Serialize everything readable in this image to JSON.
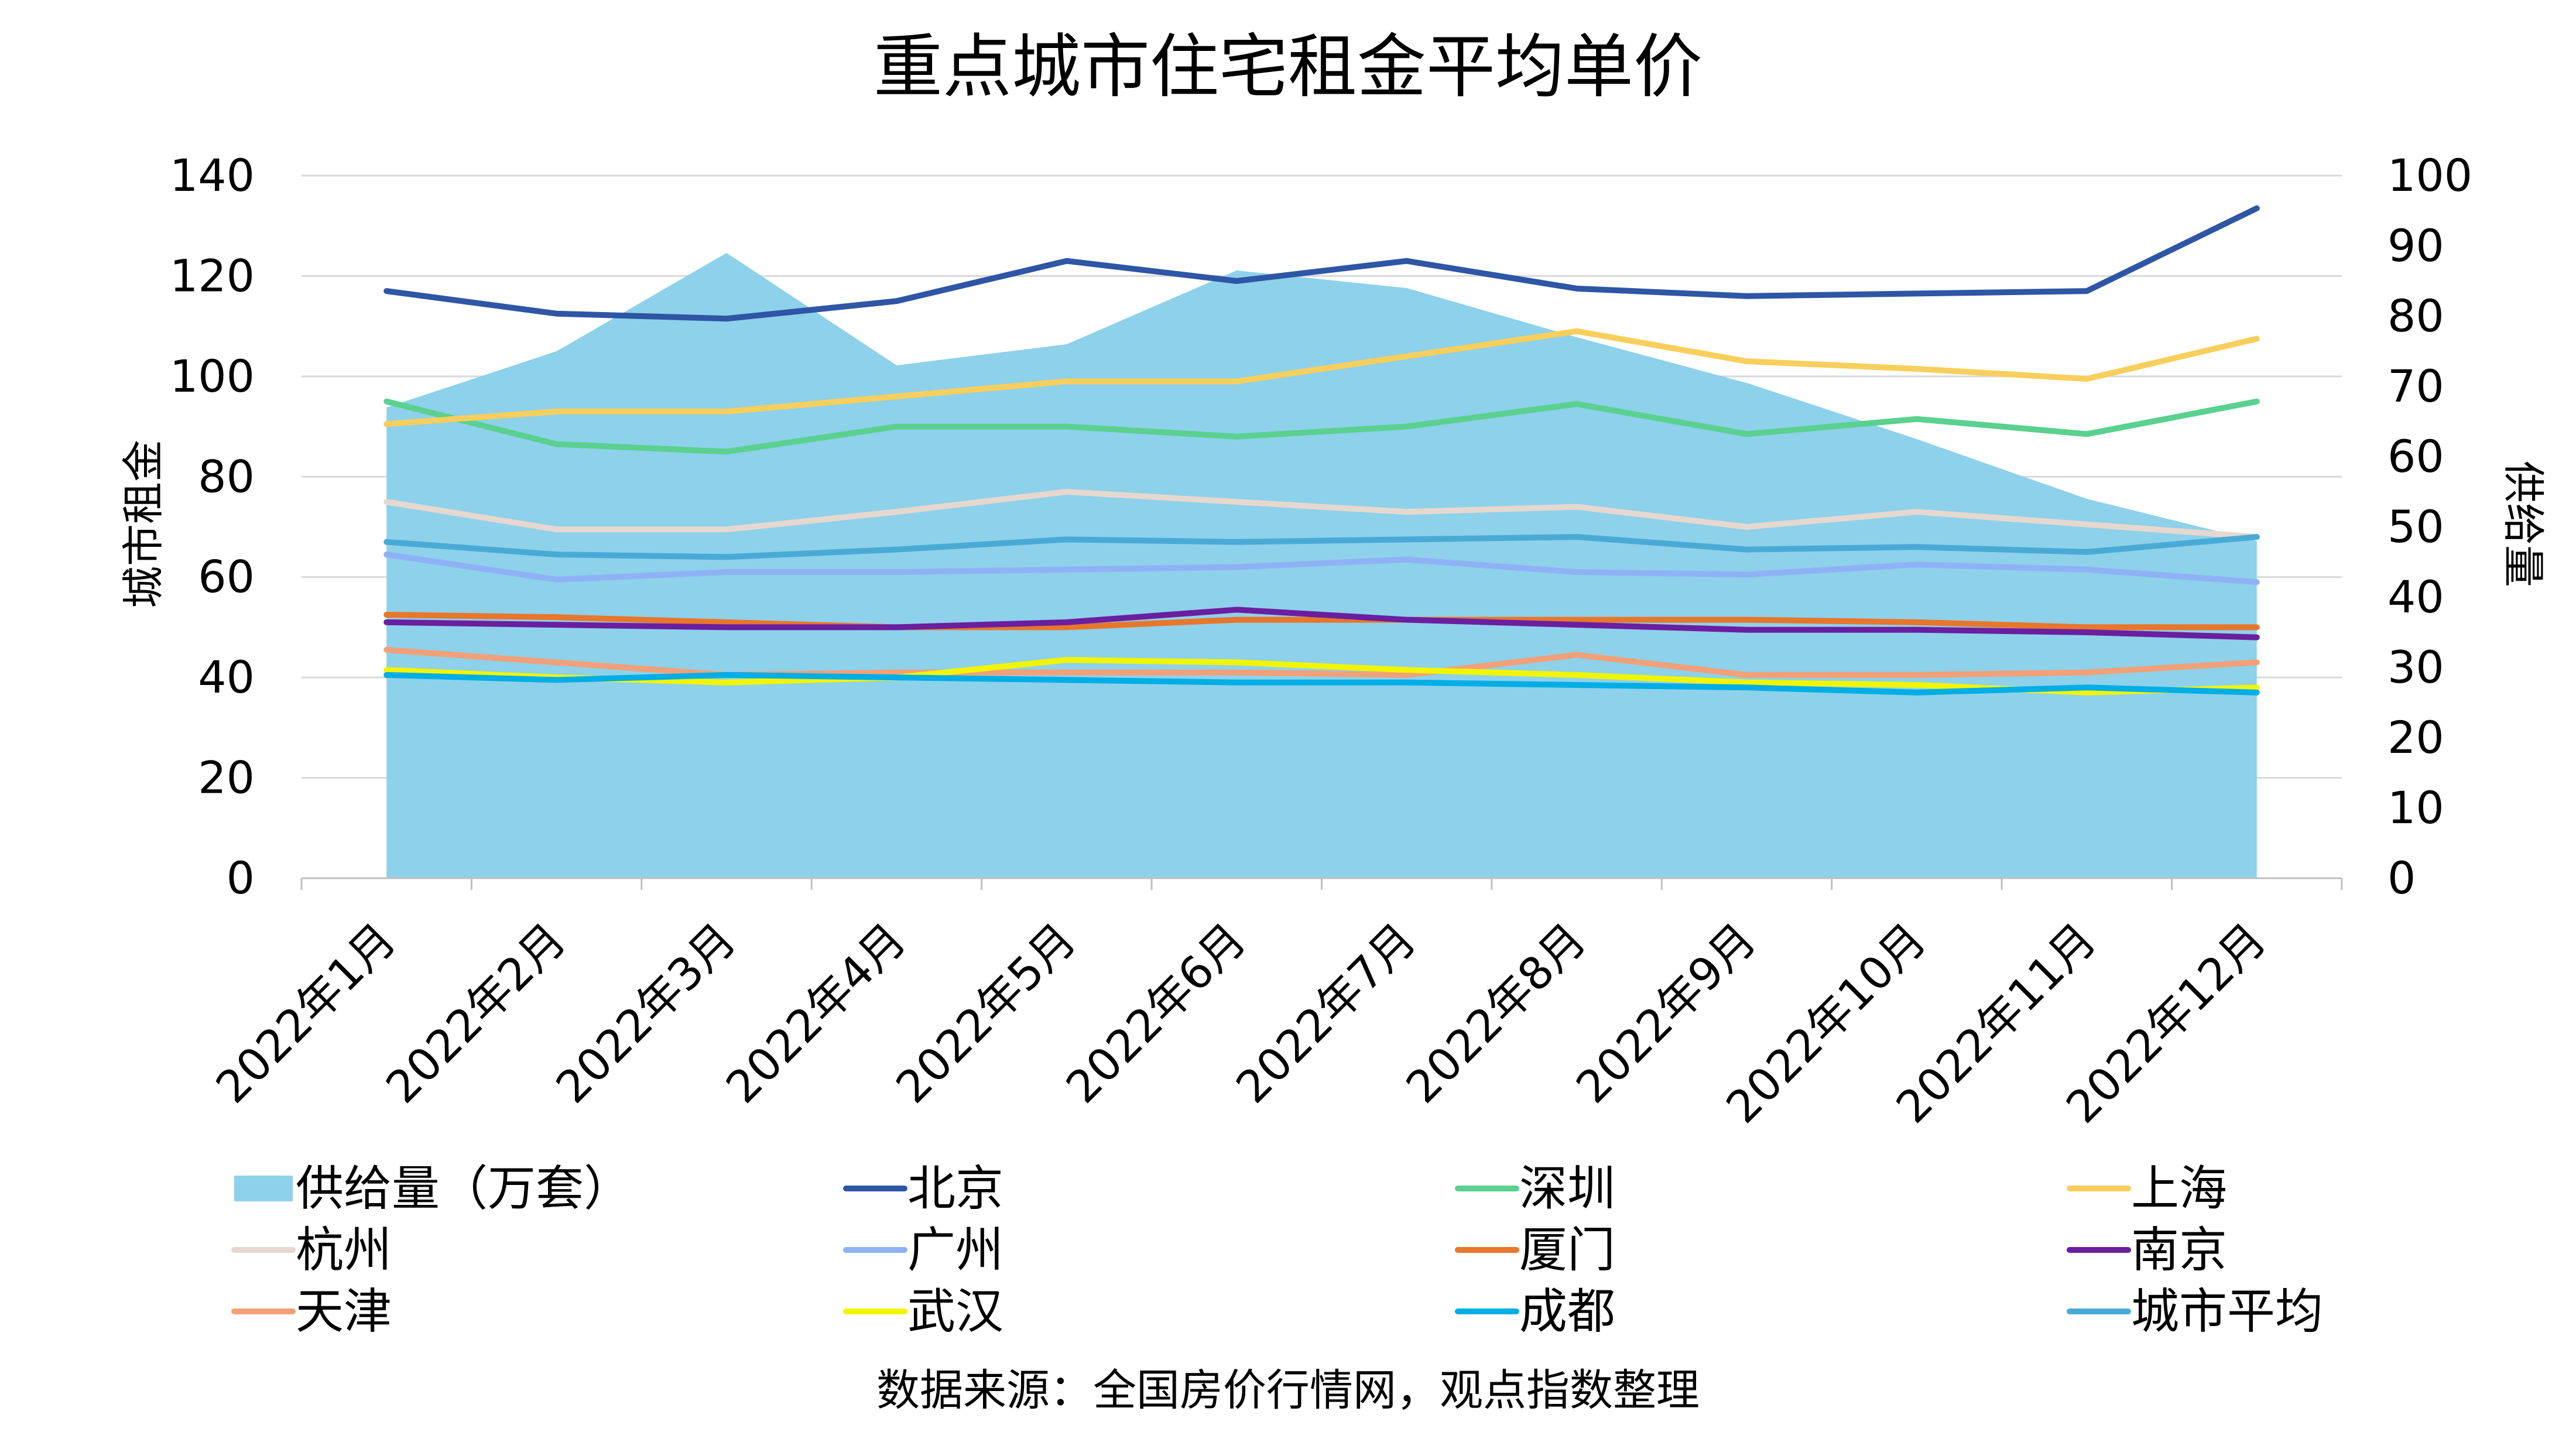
{
  "chart_data": {
    "type": "line",
    "title": "重点城市住宅租金平均单价",
    "ylabel": "城市租金",
    "y2label": "供给量",
    "source": "数据来源：全国房价行情网，观点指数整理",
    "categories": [
      "2022年1月",
      "2022年2月",
      "2022年3月",
      "2022年4月",
      "2022年5月",
      "2022年6月",
      "2022年7月",
      "2022年8月",
      "2022年9月",
      "2022年10月",
      "2022年11月",
      "2022年12月"
    ],
    "ylim": [
      0,
      140
    ],
    "yticks": [
      "0",
      "20",
      "40",
      "60",
      "80",
      "100",
      "120",
      "140"
    ],
    "y2lim": [
      0,
      100
    ],
    "y2ticks": [
      "0",
      "10",
      "20",
      "30",
      "40",
      "50",
      "60",
      "70",
      "80",
      "90",
      "100"
    ],
    "grid": true,
    "legend_position": "bottom",
    "area": {
      "name": "供给量（万套）",
      "axis": "right",
      "color": "#8ED1EA",
      "values": [
        67,
        75,
        89,
        73,
        76,
        86.5,
        84,
        77,
        70.5,
        62.5,
        54,
        48
      ]
    },
    "series": [
      {
        "name": "北京",
        "color": "#2E56A5",
        "values": [
          117,
          112.5,
          111.5,
          115,
          123,
          119,
          123,
          117.5,
          116,
          116.5,
          117,
          133.5
        ]
      },
      {
        "name": "深圳",
        "color": "#5AD18F",
        "values": [
          95,
          86.5,
          85,
          90,
          90,
          88,
          90,
          94.5,
          88.5,
          91.5,
          88.5,
          95
        ]
      },
      {
        "name": "上海",
        "color": "#F8CF5C",
        "values": [
          90.5,
          93,
          93,
          96,
          99,
          99,
          104,
          109,
          103,
          101.5,
          99.5,
          107.5
        ]
      },
      {
        "name": "杭州",
        "color": "#E6D8CF",
        "values": [
          75,
          69.5,
          69.5,
          73,
          77,
          75,
          73,
          74,
          70,
          73,
          70.5,
          68
        ]
      },
      {
        "name": "广州",
        "color": "#8FB1F5",
        "values": [
          64.5,
          59.5,
          61,
          61,
          61.5,
          62,
          63.5,
          61,
          60.5,
          62.5,
          61.5,
          59
        ]
      },
      {
        "name": "厦门",
        "color": "#E8762B",
        "values": [
          52.5,
          52,
          51,
          50,
          50,
          51.5,
          51.5,
          51.5,
          51.5,
          51,
          50,
          50
        ]
      },
      {
        "name": "南京",
        "color": "#6A1FA0",
        "values": [
          51,
          50.5,
          50,
          50,
          51,
          53.5,
          51.5,
          50.5,
          49.5,
          49.5,
          49,
          48
        ]
      },
      {
        "name": "天津",
        "color": "#F2A078",
        "values": [
          45.5,
          43,
          40.5,
          41,
          41,
          41,
          40.5,
          44.5,
          40.5,
          40.5,
          41,
          43
        ]
      },
      {
        "name": "武汉",
        "color": "#F2F500",
        "values": [
          41.5,
          40,
          39,
          40,
          43.5,
          43,
          41.5,
          40.5,
          39,
          38.5,
          37,
          38
        ]
      },
      {
        "name": "成都",
        "color": "#00AEE6",
        "values": [
          40.5,
          39.5,
          40.5,
          40,
          39.5,
          39,
          39,
          38.5,
          38,
          37,
          38,
          37
        ]
      },
      {
        "name": "城市平均",
        "color": "#4AAAD6",
        "values": [
          67,
          64.5,
          64,
          65.5,
          67.5,
          67,
          67.5,
          68,
          65.5,
          66,
          65,
          68
        ]
      }
    ]
  }
}
